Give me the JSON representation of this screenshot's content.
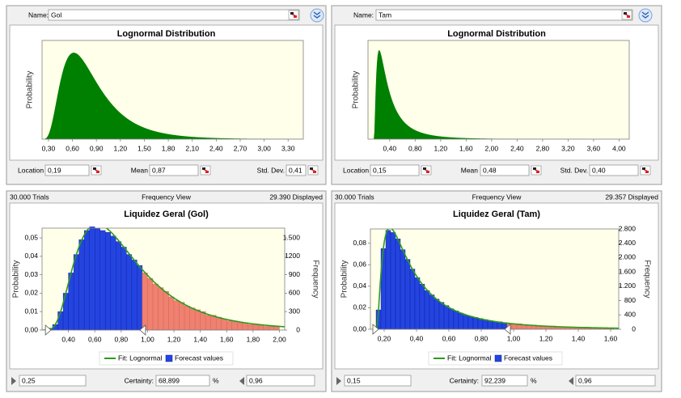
{
  "chart_data": [
    {
      "type": "lognormal",
      "name_label": "Name:",
      "name": "Gol",
      "title": "Lognormal Distribution",
      "ylabel": "Probability",
      "color": "#008000",
      "xlim": [
        0.22,
        3.49
      ],
      "ylim": [
        0,
        1.64
      ],
      "xticks": [
        {
          "value": 0.3,
          "label": "0,30"
        },
        {
          "value": 0.6,
          "label": "0,60"
        },
        {
          "value": 0.9,
          "label": "0,90"
        },
        {
          "value": 1.2,
          "label": "1,20"
        },
        {
          "value": 1.5,
          "label": "1,50"
        },
        {
          "value": 1.8,
          "label": "1,80"
        },
        {
          "value": 2.1,
          "label": "2,10"
        },
        {
          "value": 2.4,
          "label": "2,40"
        },
        {
          "value": 2.7,
          "label": "2,70"
        },
        {
          "value": 3.0,
          "label": "3,00"
        },
        {
          "value": 3.3,
          "label": "3,30"
        }
      ],
      "params": [
        {
          "name": "Location",
          "value": 0.19,
          "label": "0,19"
        },
        {
          "name": "Mean",
          "value": 0.87,
          "label": "0,87"
        },
        {
          "name": "Std. Dev.",
          "value": 0.41,
          "label": "0,41"
        }
      ]
    },
    {
      "type": "lognormal",
      "name_label": "Name:",
      "name": "Tam",
      "title": "Lognormal Distribution",
      "ylabel": "Probability",
      "color": "#008000",
      "xlim": [
        0.06,
        4.16
      ],
      "ylim": [
        0,
        3.48
      ],
      "xticks": [
        {
          "value": 0.4,
          "label": "0,40"
        },
        {
          "value": 0.8,
          "label": "0,80"
        },
        {
          "value": 1.2,
          "label": "1,20"
        },
        {
          "value": 1.6,
          "label": "1,60"
        },
        {
          "value": 2.0,
          "label": "2,00"
        },
        {
          "value": 2.4,
          "label": "2,40"
        },
        {
          "value": 2.8,
          "label": "2,80"
        },
        {
          "value": 3.2,
          "label": "3,20"
        },
        {
          "value": 3.6,
          "label": "3,60"
        },
        {
          "value": 4.0,
          "label": "4,00"
        }
      ],
      "params": [
        {
          "name": "Location",
          "value": 0.15,
          "label": "0,15"
        },
        {
          "name": "Mean",
          "value": 0.48,
          "label": "0,48"
        },
        {
          "name": "Std. Dev.",
          "value": 0.4,
          "label": "0,40"
        }
      ]
    },
    {
      "type": "histogram",
      "trials": "30.000 Trials",
      "view": "Frequency View",
      "displayed": "29.390 Displayed",
      "title": "Liquidez Geral (Gol)",
      "ylabel": "Probability",
      "y2label": "Frequency",
      "color": "#2444e0",
      "tail_color": "#f08070",
      "fit_color": "#2e9a1e",
      "legend": [
        "Fit: Lognormal",
        "Forecast values"
      ],
      "bins": [
        0.24,
        0.28,
        0.32,
        0.36,
        0.4,
        0.44,
        0.48,
        0.52,
        0.56,
        0.6,
        0.64,
        0.68,
        0.72,
        0.76,
        0.8,
        0.84,
        0.88,
        0.92,
        0.96,
        1.0,
        1.04,
        1.08,
        1.12,
        1.16,
        1.2,
        1.24,
        1.28,
        1.32,
        1.36,
        1.4,
        1.44,
        1.48,
        1.52,
        1.56,
        1.6,
        1.64,
        1.68,
        1.72,
        1.76,
        1.8,
        1.84,
        1.88,
        1.92,
        1.96,
        2.0
      ],
      "values": [
        0.001,
        0.003,
        0.01,
        0.02,
        0.031,
        0.041,
        0.049,
        0.054,
        0.056,
        0.055,
        0.054,
        0.053,
        0.051,
        0.048,
        0.045,
        0.041,
        0.038,
        0.035,
        0.031,
        0.028,
        0.025,
        0.023,
        0.021,
        0.018,
        0.016,
        0.015,
        0.013,
        0.012,
        0.011,
        0.01,
        0.008,
        0.008,
        0.007,
        0.006,
        0.005,
        0.005,
        0.004,
        0.004,
        0.003,
        0.003,
        0.003,
        0.002,
        0.002,
        0.002
      ],
      "xlim": [
        0.2,
        2.04
      ],
      "ylim": [
        0,
        0.0553
      ],
      "y2lim": [
        0,
        1658
      ],
      "xticks": [
        {
          "value": 0.4,
          "label": "0,40"
        },
        {
          "value": 0.6,
          "label": "0,60"
        },
        {
          "value": 0.8,
          "label": "0,80"
        },
        {
          "value": 1.0,
          "label": "1,00"
        },
        {
          "value": 1.2,
          "label": "1,20"
        },
        {
          "value": 1.4,
          "label": "1,40"
        },
        {
          "value": 1.6,
          "label": "1,60"
        },
        {
          "value": 1.8,
          "label": "1,80"
        },
        {
          "value": 2.0,
          "label": "2,00"
        }
      ],
      "yticks": [
        {
          "value": 0,
          "label": "0,00"
        },
        {
          "value": 0.01,
          "label": "0,01"
        },
        {
          "value": 0.02,
          "label": "0,02"
        },
        {
          "value": 0.03,
          "label": "0,03"
        },
        {
          "value": 0.04,
          "label": "0,04"
        },
        {
          "value": 0.05,
          "label": "0,05"
        }
      ],
      "y2ticks": [
        0,
        300,
        600,
        900,
        1200,
        {
          "value": 1500,
          "label": "1.500"
        }
      ],
      "lower": {
        "value": 0.25,
        "label": "0,25"
      },
      "certainty_label": "Certainty:",
      "certainty": {
        "value": 68.899,
        "label": "68,899"
      },
      "certainty_unit": "%",
      "upper": {
        "value": 0.96,
        "label": "0,96"
      }
    },
    {
      "type": "histogram",
      "trials": "30.000 Trials",
      "view": "Frequency View",
      "displayed": "29.357 Displayed",
      "title": "Liquidez Geral (Tam)",
      "ylabel": "Probability",
      "y2label": "Frequency",
      "color": "#2444e0",
      "tail_color": "#f08070",
      "fit_color": "#2e9a1e",
      "legend": [
        "Fit: Lognormal",
        "Forecast values"
      ],
      "bins": [
        0.15,
        0.18,
        0.21,
        0.24,
        0.27,
        0.3,
        0.33,
        0.36,
        0.39,
        0.42,
        0.45,
        0.48,
        0.51,
        0.54,
        0.57,
        0.6,
        0.63,
        0.66,
        0.69,
        0.72,
        0.75,
        0.78,
        0.81,
        0.84,
        0.87,
        0.9,
        0.93,
        0.96,
        0.99,
        1.02,
        1.05,
        1.08,
        1.11,
        1.14,
        1.17,
        1.2,
        1.23,
        1.26,
        1.29,
        1.32,
        1.35,
        1.38,
        1.41,
        1.44,
        1.47,
        1.5,
        1.53,
        1.56,
        1.59,
        1.62
      ],
      "values": [
        0.018,
        0.075,
        0.092,
        0.09,
        0.084,
        0.074,
        0.065,
        0.056,
        0.048,
        0.042,
        0.036,
        0.032,
        0.028,
        0.025,
        0.022,
        0.019,
        0.017,
        0.015,
        0.013,
        0.012,
        0.011,
        0.01,
        0.009,
        0.008,
        0.007,
        0.007,
        0.006,
        0.005,
        0.005,
        0.005,
        0.004,
        0.004,
        0.004,
        0.003,
        0.003,
        0.003,
        0.003,
        0.002,
        0.002,
        0.002,
        0.002,
        0.002,
        0.002,
        0.002,
        0.001,
        0.001,
        0.001,
        0.001,
        0.001
      ],
      "xlim": [
        0.115,
        1.65
      ],
      "ylim": [
        0,
        0.0933
      ],
      "y2lim": [
        0,
        2800
      ],
      "xticks": [
        {
          "value": 0.2,
          "label": "0,20"
        },
        {
          "value": 0.4,
          "label": "0,40"
        },
        {
          "value": 0.6,
          "label": "0,60"
        },
        {
          "value": 0.8,
          "label": "0,80"
        },
        {
          "value": 1.0,
          "label": "1,00"
        },
        {
          "value": 1.2,
          "label": "1,20"
        },
        {
          "value": 1.4,
          "label": "1,40"
        },
        {
          "value": 1.6,
          "label": "1,60"
        }
      ],
      "yticks": [
        {
          "value": 0,
          "label": "0,00"
        },
        {
          "value": 0.02,
          "label": "0,02"
        },
        {
          "value": 0.04,
          "label": "0,04"
        },
        {
          "value": 0.06,
          "label": "0,06"
        },
        {
          "value": 0.08,
          "label": "0,08"
        }
      ],
      "y2ticks": [
        0,
        400,
        800,
        {
          "value": 1200,
          "label": "1.200"
        },
        {
          "value": 1600,
          "label": "1.600"
        },
        {
          "value": 2000,
          "label": "2.000"
        },
        {
          "value": 2400,
          "label": "2.400"
        },
        {
          "value": 2800,
          "label": "2.800"
        }
      ],
      "lower": {
        "value": 0.15,
        "label": "0,15"
      },
      "certainty_label": "Certainty:",
      "certainty": {
        "value": 92.239,
        "label": "92,239"
      },
      "certainty_unit": "%",
      "upper": {
        "value": 0.96,
        "label": "0,96"
      }
    }
  ]
}
